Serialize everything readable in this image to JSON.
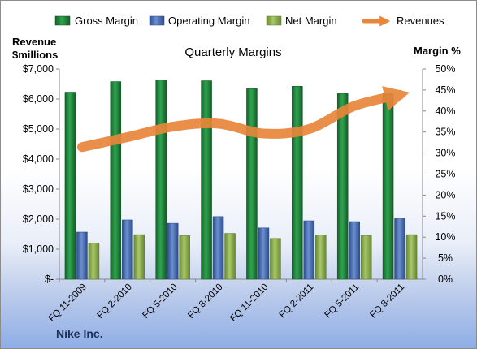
{
  "chart_data": {
    "type": "bar",
    "title": "Quarterly Margins",
    "y_left_title_line1": "Revenue",
    "y_left_title_line2": "$millions",
    "y_right_title": "Margin %",
    "company": "Nike Inc.",
    "categories": [
      "FQ 11-2009",
      "FQ 2-2010",
      "FQ 5-2010",
      "FQ 8-2010",
      "FQ 11-2010",
      "FQ 2-2011",
      "FQ 5-2011",
      "FQ 8-2011"
    ],
    "y_left_ticks": [
      "$-",
      "$1,000",
      "$2,000",
      "$3,000",
      "$4,000",
      "$5,000",
      "$6,000",
      "$7,000"
    ],
    "y_left_range": [
      0,
      7000
    ],
    "y_right_ticks": [
      "0%",
      "5%",
      "10%",
      "15%",
      "20%",
      "25%",
      "30%",
      "35%",
      "40%",
      "45%",
      "50%"
    ],
    "y_right_range": [
      0,
      50
    ],
    "legend_position": "top",
    "grid": false,
    "series": [
      {
        "name": "Gross Margin",
        "axis": "right",
        "type": "bar",
        "color": "#1e8a3c",
        "values": [
          44.5,
          47.0,
          47.4,
          47.2,
          45.3,
          45.9,
          44.2,
          44.2
        ]
      },
      {
        "name": "Operating Margin",
        "axis": "right",
        "type": "bar",
        "color": "#4a6fb5",
        "values": [
          11.2,
          14.1,
          13.3,
          14.9,
          12.2,
          13.9,
          13.7,
          14.5
        ]
      },
      {
        "name": "Net Margin",
        "axis": "right",
        "type": "bar",
        "color": "#8fb04c",
        "values": [
          8.6,
          10.6,
          10.4,
          10.9,
          9.7,
          10.5,
          10.4,
          10.6
        ]
      },
      {
        "name": "Revenues",
        "axis": "left",
        "type": "line",
        "color": "#e8863a",
        "values": [
          4400,
          4730,
          5080,
          5180,
          4850,
          5000,
          5770,
          6140
        ]
      }
    ]
  }
}
